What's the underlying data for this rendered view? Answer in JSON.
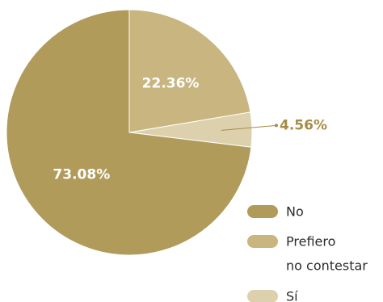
{
  "chart_data": {
    "type": "pie",
    "slices": [
      {
        "label": "No",
        "value": 73.08,
        "value_label": "73.08%",
        "color": "#b19b5b"
      },
      {
        "label": "Prefiero no contestar",
        "value": 22.36,
        "value_label": "22.36%",
        "color": "#c8b57f"
      },
      {
        "label": "Sí",
        "value": 4.56,
        "value_label": "4.56%",
        "color": "#ddd1ad"
      }
    ],
    "legend": {
      "position": "bottom-right",
      "items": [
        {
          "lines": [
            "No"
          ],
          "color": "#b19b5b"
        },
        {
          "lines": [
            "Prefiero",
            "no contestar"
          ],
          "color": "#c8b57f"
        },
        {
          "lines": [
            "Sí"
          ],
          "color": "#ddd1ad"
        }
      ]
    },
    "outside_label_color": "#a68c46"
  }
}
